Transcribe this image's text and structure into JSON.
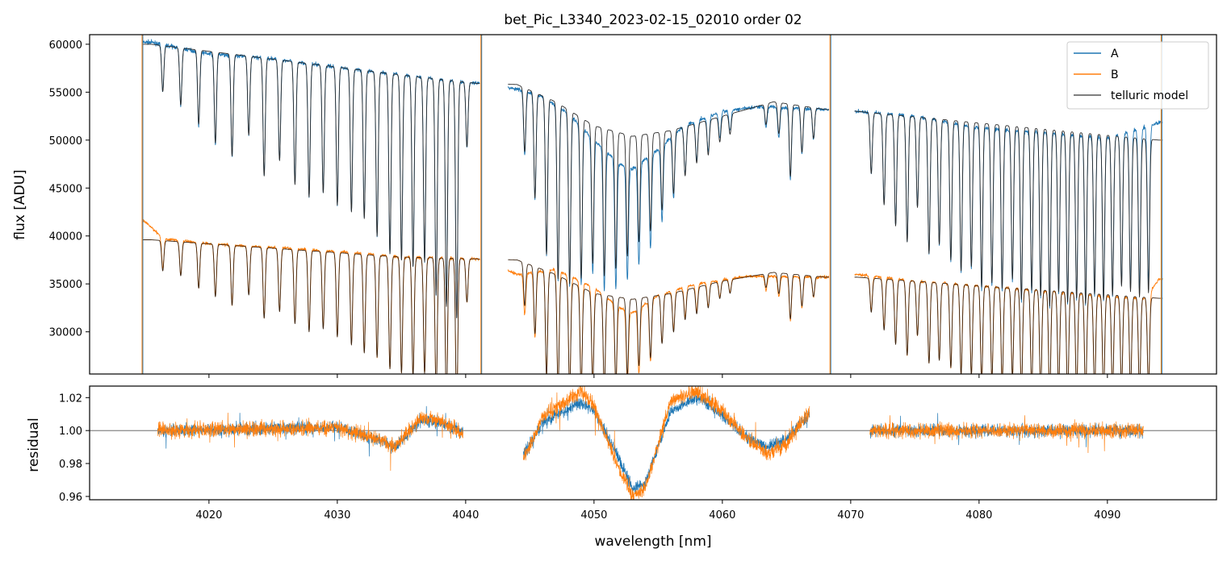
{
  "chart_data": [
    {
      "type": "line",
      "title": "bet_Pic_L3340_2023-02-15_02010  order 02",
      "xlabel": "",
      "ylabel": "flux [ADU]",
      "xlim": [
        4010.7,
        4098.5
      ],
      "ylim": [
        25600,
        61000
      ],
      "yticks": [
        30000,
        35000,
        40000,
        45000,
        50000,
        55000,
        60000
      ],
      "ytick_labels": [
        "30000",
        "35000",
        "40000",
        "45000",
        "50000",
        "55000",
        "60000"
      ],
      "legend": {
        "position": "top-right",
        "entries": [
          {
            "label": "A",
            "color": "#1f77b4"
          },
          {
            "label": "B",
            "color": "#ff7f0e"
          },
          {
            "label": "telluric model",
            "color": "#555555"
          }
        ]
      },
      "segments": [
        {
          "start": 4014.8,
          "end": 4041.1
        },
        {
          "start": 4043.3,
          "end": 4068.3
        },
        {
          "start": 4070.3,
          "end": 4094.3
        }
      ],
      "series": [
        {
          "name": "A",
          "color": "#1f77b4",
          "continuum": [
            {
              "x": 4015.5,
              "y": 60200
            },
            {
              "x": 4020,
              "y": 59000
            },
            {
              "x": 4025,
              "y": 58500
            },
            {
              "x": 4030,
              "y": 57600
            },
            {
              "x": 4035,
              "y": 56800
            },
            {
              "x": 4041,
              "y": 55900
            },
            {
              "x": 4044,
              "y": 55300
            },
            {
              "x": 4046,
              "y": 54500
            },
            {
              "x": 4048,
              "y": 52800
            },
            {
              "x": 4050,
              "y": 50000
            },
            {
              "x": 4052,
              "y": 47500
            },
            {
              "x": 4053,
              "y": 47000
            },
            {
              "x": 4055,
              "y": 49000
            },
            {
              "x": 4057,
              "y": 51500
            },
            {
              "x": 4060,
              "y": 53000
            },
            {
              "x": 4063,
              "y": 53500
            },
            {
              "x": 4068,
              "y": 53200
            },
            {
              "x": 4070.5,
              "y": 53000
            },
            {
              "x": 4075,
              "y": 52500
            },
            {
              "x": 4080,
              "y": 51300
            },
            {
              "x": 4085,
              "y": 50800
            },
            {
              "x": 4090,
              "y": 50200
            },
            {
              "x": 4094,
              "y": 51800
            }
          ]
        },
        {
          "name": "B",
          "color": "#ff7f0e",
          "continuum": [
            {
              "x": 4015,
              "y": 41500
            },
            {
              "x": 4016.5,
              "y": 39700
            },
            {
              "x": 4020,
              "y": 39200
            },
            {
              "x": 4025,
              "y": 38800
            },
            {
              "x": 4030,
              "y": 38400
            },
            {
              "x": 4035,
              "y": 37800
            },
            {
              "x": 4041,
              "y": 37600
            },
            {
              "x": 4044,
              "y": 36000
            },
            {
              "x": 4047,
              "y": 36500
            },
            {
              "x": 4050,
              "y": 34600
            },
            {
              "x": 4052,
              "y": 32500
            },
            {
              "x": 4053,
              "y": 32000
            },
            {
              "x": 4055,
              "y": 33800
            },
            {
              "x": 4058,
              "y": 35000
            },
            {
              "x": 4062,
              "y": 35800
            },
            {
              "x": 4068,
              "y": 35700
            },
            {
              "x": 4070.5,
              "y": 36000
            },
            {
              "x": 4075,
              "y": 35300
            },
            {
              "x": 4080,
              "y": 34800
            },
            {
              "x": 4085,
              "y": 34300
            },
            {
              "x": 4090,
              "y": 33700
            },
            {
              "x": 4093,
              "y": 33500
            },
            {
              "x": 4094,
              "y": 35500
            }
          ]
        },
        {
          "name": "telluric model",
          "color": "#555555",
          "continuum_A": [
            {
              "x": 4015.5,
              "y": 60000
            },
            {
              "x": 4035,
              "y": 56800
            },
            {
              "x": 4041,
              "y": 55900
            },
            {
              "x": 4044,
              "y": 55800
            },
            {
              "x": 4047,
              "y": 54000
            },
            {
              "x": 4050,
              "y": 51500
            },
            {
              "x": 4053,
              "y": 50400
            },
            {
              "x": 4056,
              "y": 51000
            },
            {
              "x": 4060,
              "y": 52500
            },
            {
              "x": 4064,
              "y": 54000
            },
            {
              "x": 4068,
              "y": 53200
            },
            {
              "x": 4070.5,
              "y": 53000
            },
            {
              "x": 4094,
              "y": 50000
            }
          ],
          "continuum_B": [
            {
              "x": 4015.5,
              "y": 39600
            },
            {
              "x": 4035,
              "y": 37800
            },
            {
              "x": 4041,
              "y": 37600
            },
            {
              "x": 4044,
              "y": 37500
            },
            {
              "x": 4047,
              "y": 36000
            },
            {
              "x": 4050,
              "y": 34000
            },
            {
              "x": 4053,
              "y": 33400
            },
            {
              "x": 4056,
              "y": 34000
            },
            {
              "x": 4060,
              "y": 35300
            },
            {
              "x": 4064,
              "y": 36200
            },
            {
              "x": 4068,
              "y": 35700
            },
            {
              "x": 4070.5,
              "y": 35700
            },
            {
              "x": 4094,
              "y": 33500
            }
          ]
        }
      ],
      "absorption_lines": [
        {
          "x": 4016.4,
          "dA": 0.08,
          "dB": 0.08
        },
        {
          "x": 4017.8,
          "dA": 0.1,
          "dB": 0.09
        },
        {
          "x": 4019.2,
          "dA": 0.13,
          "dB": 0.12
        },
        {
          "x": 4020.5,
          "dA": 0.16,
          "dB": 0.14
        },
        {
          "x": 4021.8,
          "dA": 0.18,
          "dB": 0.16
        },
        {
          "x": 4023.1,
          "dA": 0.14,
          "dB": 0.13
        },
        {
          "x": 4024.3,
          "dA": 0.21,
          "dB": 0.19
        },
        {
          "x": 4025.5,
          "dA": 0.18,
          "dB": 0.17
        },
        {
          "x": 4026.7,
          "dA": 0.22,
          "dB": 0.2
        },
        {
          "x": 4027.8,
          "dA": 0.24,
          "dB": 0.22
        },
        {
          "x": 4028.9,
          "dA": 0.23,
          "dB": 0.21
        },
        {
          "x": 4030.0,
          "dA": 0.25,
          "dB": 0.23
        },
        {
          "x": 4031.1,
          "dA": 0.26,
          "dB": 0.25
        },
        {
          "x": 4032.1,
          "dA": 0.27,
          "dB": 0.27
        },
        {
          "x": 4033.1,
          "dA": 0.3,
          "dB": 0.28
        },
        {
          "x": 4034.1,
          "dA": 0.33,
          "dB": 0.31
        },
        {
          "x": 4035.0,
          "dA": 0.34,
          "dB": 0.32
        },
        {
          "x": 4035.9,
          "dA": 0.35,
          "dB": 0.33
        },
        {
          "x": 4036.8,
          "dA": 0.34,
          "dB": 0.32
        },
        {
          "x": 4037.7,
          "dA": 0.4,
          "dB": 0.38
        },
        {
          "x": 4038.5,
          "dA": 0.42,
          "dB": 0.4
        },
        {
          "x": 4039.3,
          "dA": 0.44,
          "dB": 0.42
        },
        {
          "x": 4040.1,
          "dA": 0.12,
          "dB": 0.12
        },
        {
          "x": 4044.6,
          "dA": 0.12,
          "dB": 0.12
        },
        {
          "x": 4045.4,
          "dA": 0.2,
          "dB": 0.19
        },
        {
          "x": 4046.3,
          "dA": 0.3,
          "dB": 0.3
        },
        {
          "x": 4047.2,
          "dA": 0.34,
          "dB": 0.33
        },
        {
          "x": 4048.1,
          "dA": 0.34,
          "dB": 0.33
        },
        {
          "x": 4049.0,
          "dA": 0.32,
          "dB": 0.31
        },
        {
          "x": 4049.9,
          "dA": 0.28,
          "dB": 0.28
        },
        {
          "x": 4050.8,
          "dA": 0.3,
          "dB": 0.29
        },
        {
          "x": 4051.7,
          "dA": 0.28,
          "dB": 0.27
        },
        {
          "x": 4052.6,
          "dA": 0.25,
          "dB": 0.24
        },
        {
          "x": 4053.5,
          "dA": 0.22,
          "dB": 0.21
        },
        {
          "x": 4054.4,
          "dA": 0.2,
          "dB": 0.19
        },
        {
          "x": 4055.3,
          "dA": 0.16,
          "dB": 0.15
        },
        {
          "x": 4056.2,
          "dA": 0.13,
          "dB": 0.12
        },
        {
          "x": 4057.1,
          "dA": 0.1,
          "dB": 0.09
        },
        {
          "x": 4058.0,
          "dA": 0.08,
          "dB": 0.08
        },
        {
          "x": 4058.9,
          "dA": 0.07,
          "dB": 0.07
        },
        {
          "x": 4059.8,
          "dA": 0.05,
          "dB": 0.05
        },
        {
          "x": 4060.6,
          "dA": 0.04,
          "dB": 0.04
        },
        {
          "x": 4063.4,
          "dA": 0.04,
          "dB": 0.04
        },
        {
          "x": 4064.4,
          "dA": 0.06,
          "dB": 0.06
        },
        {
          "x": 4065.3,
          "dA": 0.14,
          "dB": 0.13
        },
        {
          "x": 4066.2,
          "dA": 0.09,
          "dB": 0.09
        },
        {
          "x": 4067.1,
          "dA": 0.06,
          "dB": 0.06
        },
        {
          "x": 4071.6,
          "dA": 0.12,
          "dB": 0.1
        },
        {
          "x": 4072.6,
          "dA": 0.18,
          "dB": 0.15
        },
        {
          "x": 4073.5,
          "dA": 0.22,
          "dB": 0.19
        },
        {
          "x": 4074.4,
          "dA": 0.25,
          "dB": 0.22
        },
        {
          "x": 4075.2,
          "dA": 0.18,
          "dB": 0.16
        },
        {
          "x": 4076.1,
          "dA": 0.27,
          "dB": 0.24
        },
        {
          "x": 4076.9,
          "dA": 0.25,
          "dB": 0.23
        },
        {
          "x": 4077.8,
          "dA": 0.28,
          "dB": 0.25
        },
        {
          "x": 4078.6,
          "dA": 0.3,
          "dB": 0.27
        },
        {
          "x": 4079.4,
          "dA": 0.29,
          "dB": 0.27
        },
        {
          "x": 4080.2,
          "dA": 0.33,
          "dB": 0.29
        },
        {
          "x": 4081.0,
          "dA": 0.32,
          "dB": 0.28
        },
        {
          "x": 4081.8,
          "dA": 0.33,
          "dB": 0.29
        },
        {
          "x": 4082.6,
          "dA": 0.31,
          "dB": 0.27
        },
        {
          "x": 4083.3,
          "dA": 0.35,
          "dB": 0.32
        },
        {
          "x": 4084.1,
          "dA": 0.33,
          "dB": 0.3
        },
        {
          "x": 4084.8,
          "dA": 0.34,
          "dB": 0.31
        },
        {
          "x": 4085.5,
          "dA": 0.36,
          "dB": 0.33
        },
        {
          "x": 4086.2,
          "dA": 0.33,
          "dB": 0.3
        },
        {
          "x": 4086.9,
          "dA": 0.35,
          "dB": 0.32
        },
        {
          "x": 4087.6,
          "dA": 0.34,
          "dB": 0.31
        },
        {
          "x": 4088.3,
          "dA": 0.35,
          "dB": 0.32
        },
        {
          "x": 4089.0,
          "dA": 0.33,
          "dB": 0.3
        },
        {
          "x": 4089.7,
          "dA": 0.34,
          "dB": 0.31
        },
        {
          "x": 4090.4,
          "dA": 0.33,
          "dB": 0.3
        },
        {
          "x": 4091.1,
          "dA": 0.31,
          "dB": 0.29
        },
        {
          "x": 4091.8,
          "dA": 0.32,
          "dB": 0.29
        },
        {
          "x": 4092.5,
          "dA": 0.33,
          "dB": 0.3
        },
        {
          "x": 4093.2,
          "dA": 0.32,
          "dB": 0.29
        }
      ]
    },
    {
      "type": "line",
      "title": "",
      "xlabel": "wavelength [nm]",
      "ylabel": "residual",
      "xlim": [
        4010.7,
        4098.5
      ],
      "ylim": [
        0.958,
        1.027
      ],
      "xticks": [
        4020,
        4030,
        4040,
        4050,
        4060,
        4070,
        4080,
        4090
      ],
      "xtick_labels": [
        "4020",
        "4030",
        "4040",
        "4050",
        "4060",
        "4070",
        "4080",
        "4090"
      ],
      "yticks": [
        0.96,
        0.98,
        1.0,
        1.02
      ],
      "ytick_labels": [
        "0.96",
        "0.98",
        "1.00",
        "1.02"
      ],
      "reference_line": 1.0,
      "segments": [
        {
          "start": 4016.0,
          "end": 4039.8
        },
        {
          "start": 4044.5,
          "end": 4066.8
        },
        {
          "start": 4071.5,
          "end": 4092.8
        }
      ],
      "series": [
        {
          "name": "A",
          "color": "#1f77b4",
          "trend": [
            {
              "x": 4016,
              "y": 1.0
            },
            {
              "x": 4030,
              "y": 1.002
            },
            {
              "x": 4033,
              "y": 0.995
            },
            {
              "x": 4034.5,
              "y": 0.99
            },
            {
              "x": 4036.5,
              "y": 1.006
            },
            {
              "x": 4038,
              "y": 1.005
            },
            {
              "x": 4039.8,
              "y": 0.999
            },
            {
              "x": 4044.5,
              "y": 0.985
            },
            {
              "x": 4046,
              "y": 1.005
            },
            {
              "x": 4049,
              "y": 1.017
            },
            {
              "x": 4050,
              "y": 1.012
            },
            {
              "x": 4051.5,
              "y": 0.99
            },
            {
              "x": 4053,
              "y": 0.965
            },
            {
              "x": 4054,
              "y": 0.968
            },
            {
              "x": 4055,
              "y": 0.99
            },
            {
              "x": 4056,
              "y": 1.012
            },
            {
              "x": 4058,
              "y": 1.02
            },
            {
              "x": 4060,
              "y": 1.01
            },
            {
              "x": 4062,
              "y": 0.995
            },
            {
              "x": 4063.5,
              "y": 0.99
            },
            {
              "x": 4065,
              "y": 0.995
            },
            {
              "x": 4066.8,
              "y": 1.01
            },
            {
              "x": 4071.5,
              "y": 1.0
            },
            {
              "x": 4092.8,
              "y": 1.0
            }
          ]
        },
        {
          "name": "B",
          "color": "#ff7f0e",
          "trend": [
            {
              "x": 4016,
              "y": 1.0
            },
            {
              "x": 4030,
              "y": 1.002
            },
            {
              "x": 4033,
              "y": 0.995
            },
            {
              "x": 4034.5,
              "y": 0.99
            },
            {
              "x": 4036.5,
              "y": 1.008
            },
            {
              "x": 4038,
              "y": 1.006
            },
            {
              "x": 4039.8,
              "y": 0.998
            },
            {
              "x": 4044.5,
              "y": 0.982
            },
            {
              "x": 4046,
              "y": 1.008
            },
            {
              "x": 4049,
              "y": 1.024
            },
            {
              "x": 4050,
              "y": 1.015
            },
            {
              "x": 4051.5,
              "y": 0.985
            },
            {
              "x": 4053,
              "y": 0.96
            },
            {
              "x": 4054,
              "y": 0.965
            },
            {
              "x": 4055,
              "y": 0.992
            },
            {
              "x": 4056,
              "y": 1.018
            },
            {
              "x": 4058,
              "y": 1.024
            },
            {
              "x": 4060,
              "y": 1.012
            },
            {
              "x": 4062,
              "y": 0.994
            },
            {
              "x": 4063.5,
              "y": 0.986
            },
            {
              "x": 4065,
              "y": 0.992
            },
            {
              "x": 4066.8,
              "y": 1.012
            },
            {
              "x": 4071.5,
              "y": 1.0
            },
            {
              "x": 4092.8,
              "y": 1.0
            }
          ]
        }
      ]
    }
  ]
}
